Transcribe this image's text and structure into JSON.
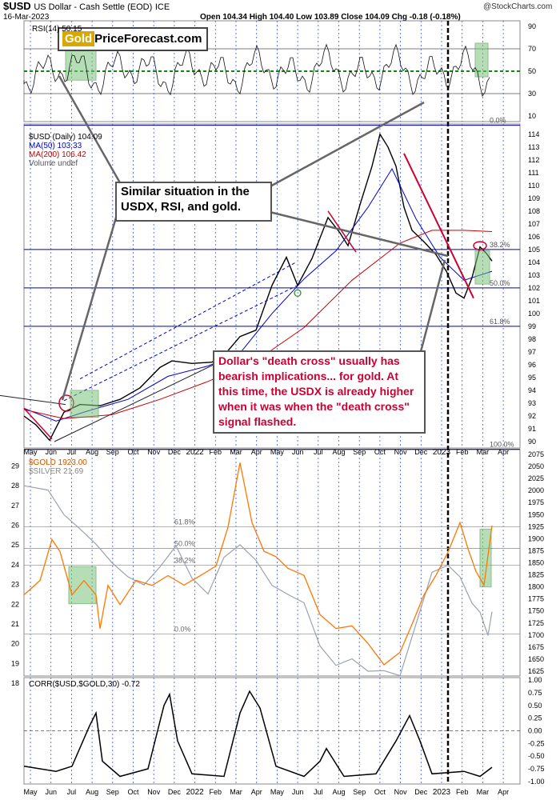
{
  "header": {
    "symbol": "$USD",
    "name": "US Dollar - Cash Settle (EOD)",
    "exchange": "ICE",
    "date": "16-Mar-2023",
    "ohlc": "Open 104.34  High 104.40  Low 103.89  Close 104.09  Chg -0.18 (-0.18%)",
    "credit": "@StockCharts.com",
    "logo_gold": "Gold",
    "logo_rest": "PriceForecast.com"
  },
  "legend": {
    "rsi": "RSI(14) 50.15",
    "usd": "$USD (Daily) 104.09",
    "ma50": "MA(50) 103.33",
    "ma200": "MA(200) 106.42",
    "volume": "Volume undef",
    "gold": "$GOLD 1923.00",
    "silver": "$SILVER 21.69",
    "corr": "CORR($USD,$GOLD,30) -0.72"
  },
  "annotations": {
    "similar": "Similar situation in the USDX, RSI, and gold.",
    "death_cross": "Dollar's \"death cross\" usually has bearish implications... for gold. At this time, the USDX is already higher when it was when the \"death cross\" signal flashed."
  },
  "colors": {
    "usd": "#000000",
    "ma50": "#0000cc",
    "ma200": "#cc0000",
    "gold": "#ff7700",
    "silver": "#9aa2b0",
    "trend": "#cc0033",
    "green_box": "#7cc47c",
    "note_text": "#cc0033"
  },
  "chart_data": [
    {
      "type": "line",
      "panel": "RSI",
      "series": [
        {
          "name": "RSI(14)",
          "last": 50.15
        }
      ],
      "y_ticks": [
        10,
        30,
        50,
        70,
        90
      ],
      "ylim": [
        5,
        95
      ]
    },
    {
      "type": "line",
      "panel": "$USD",
      "series": [
        {
          "name": "$USD (Daily)",
          "last": 104.09
        },
        {
          "name": "MA(50)",
          "last": 103.33
        },
        {
          "name": "MA(200)",
          "last": 106.42
        }
      ],
      "x_ticks": [
        "May",
        "Jun",
        "Jul",
        "Aug",
        "Sep",
        "Oct",
        "Nov",
        "Dec",
        "2022",
        "Feb",
        "Mar",
        "Apr",
        "May",
        "Jun",
        "Jul",
        "Aug",
        "Sep",
        "Oct",
        "Nov",
        "Dec",
        "2023",
        "Feb",
        "Mar",
        "Apr"
      ],
      "y_ticks": [
        90,
        91,
        92,
        93,
        94,
        95,
        96,
        97,
        98,
        99,
        100,
        101,
        102,
        103,
        104,
        105,
        106,
        107,
        108,
        109,
        110,
        111,
        112,
        113,
        114
      ],
      "ylim": [
        89.5,
        114.8
      ],
      "fib_levels": [
        {
          "label": "0.0%",
          "value": 114.7
        },
        {
          "label": "38.2%",
          "value": 105.0
        },
        {
          "label": "50.0%",
          "value": 102.0
        },
        {
          "label": "61.8%",
          "value": 99.0
        },
        {
          "label": "100.0%",
          "value": 89.4
        }
      ]
    },
    {
      "type": "line",
      "panel": "$GOLD vs $SILVER",
      "series": [
        {
          "name": "$GOLD",
          "last": 1923.0,
          "axis": "right"
        },
        {
          "name": "$SILVER",
          "last": 21.69,
          "axis": "left"
        }
      ],
      "y_ticks_left": [
        18,
        19,
        20,
        21,
        22,
        23,
        24,
        25,
        26,
        27,
        28,
        29
      ],
      "y_ticks_right": [
        1625,
        1650,
        1675,
        1700,
        1725,
        1750,
        1775,
        1800,
        1825,
        1850,
        1875,
        1900,
        1925,
        1950,
        1975,
        2000,
        2025,
        2050,
        2075
      ],
      "ylim_right": [
        1615,
        2085
      ],
      "fib_levels": [
        {
          "label": "61.8%"
        },
        {
          "label": "50.0%"
        },
        {
          "label": "38.2%"
        },
        {
          "label": "0.0%"
        }
      ]
    },
    {
      "type": "line",
      "panel": "CORR",
      "series": [
        {
          "name": "CORR($USD,$GOLD,30)",
          "last": -0.72
        }
      ],
      "y_ticks": [
        "1.00",
        "0.75",
        "0.50",
        "0.25",
        "0.00",
        "-0.25",
        "-0.50",
        "-0.75",
        "-1.00"
      ],
      "ylim": [
        -1.05,
        1.05
      ]
    }
  ]
}
